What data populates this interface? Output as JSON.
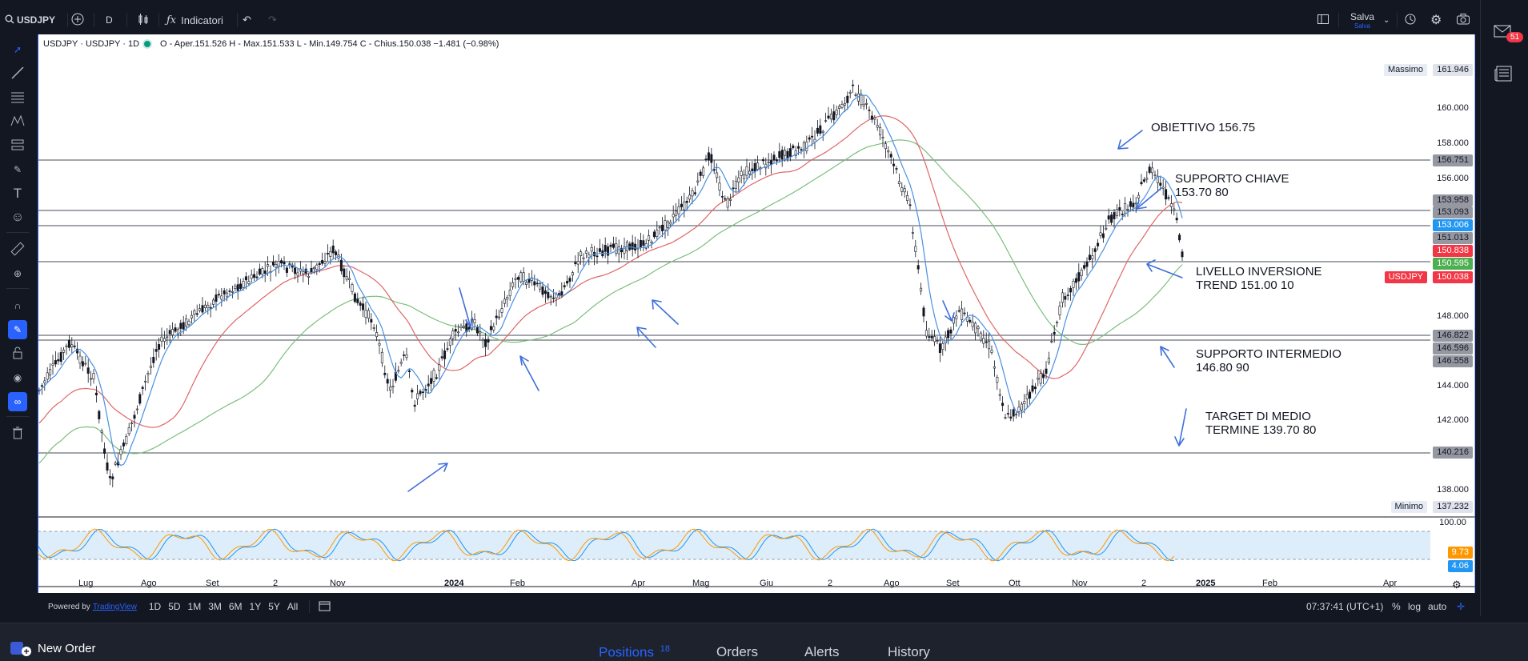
{
  "toolbar": {
    "symbol": "USDJPY",
    "interval": "D",
    "indicators_label": "Indicatori",
    "save_label": "Salva",
    "save_sub": "Salva"
  },
  "notifications": {
    "count": "51"
  },
  "legend": {
    "title": "USDJPY · USDJPY · 1D",
    "ohlc": "O - Aper.151.526  H - Max.151.533  L - Min.149.754  C - Chius.150.038  −1.481 (−0.98%)"
  },
  "price_axis": {
    "ticks": [
      "160.000",
      "158.000",
      "156.000",
      "148.000",
      "144.000",
      "142.000",
      "138.000"
    ],
    "max_label": "Massimo",
    "max_value": "161.946",
    "min_label": "Minimo",
    "min_value": "137.232",
    "levels": [
      "156.751",
      "153.958",
      "153.093",
      "151.013",
      "146.822",
      "146.596",
      "146.558",
      "140.216"
    ],
    "badge_blue": "153.006",
    "badge_red": "150.838",
    "badge_green": "150.595",
    "symbol_badge": "USDJPY",
    "last_price": "150.038"
  },
  "time_axis": [
    "Lug",
    "Ago",
    "Set",
    "2",
    "Nov",
    "2024",
    "Feb",
    "Apr",
    "Mag",
    "Giu",
    "2",
    "Ago",
    "Set",
    "Ott",
    "Nov",
    "2",
    "2025",
    "Feb",
    "Apr"
  ],
  "oscillator": {
    "upper": "100.00",
    "value_orange": "9.73",
    "value_blue": "4.06"
  },
  "annotations": {
    "target": "OBIETTIVO 156.75",
    "key_support_1": "SUPPORTO CHIAVE",
    "key_support_2": "153.70 80",
    "reversal_1": "LIVELLO INVERSIONE",
    "reversal_2": "TREND 151.00 10",
    "mid_support_1": "SUPPORTO INTERMEDIO",
    "mid_support_2": "146.80 90",
    "mid_target_1": "TARGET DI MEDIO",
    "mid_target_2": "TERMINE  139.70 80"
  },
  "bottom": {
    "powered": "Powered by",
    "tv": "TradingView",
    "ranges": [
      "1D",
      "5D",
      "1M",
      "3M",
      "6M",
      "1Y",
      "5Y",
      "All"
    ],
    "time": "07:37:41 (UTC+1)",
    "percent": "%",
    "log": "log",
    "auto": "auto"
  },
  "panel": {
    "new_order": "New Order",
    "tabs": [
      "Positions",
      "Orders",
      "Alerts",
      "History"
    ],
    "positions_count": "18"
  },
  "colors": {
    "accent": "#2962ff",
    "ma_blue": "#4a90e2",
    "ma_red": "#e06666",
    "ma_green": "#7cbf7c"
  }
}
